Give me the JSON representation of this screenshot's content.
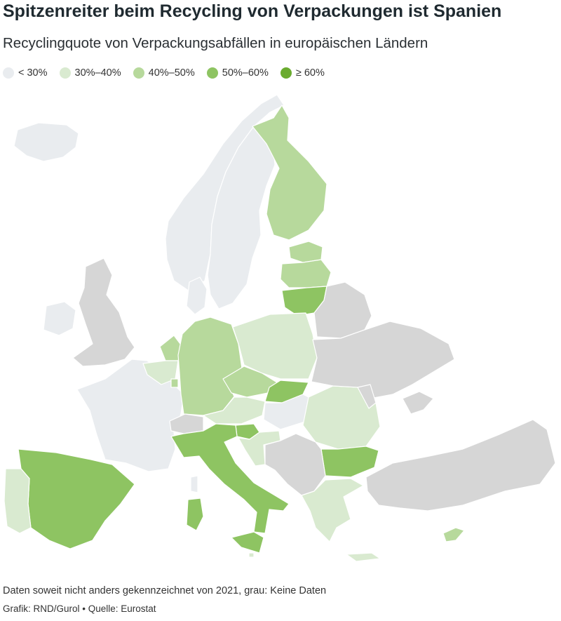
{
  "title": "Spitzenreiter beim Recycling von Verpackungen ist Spanien",
  "subtitle": "Recyclingquote von Verpackungsabfällen in europäischen Ländern",
  "legend": [
    {
      "label": "< 30%",
      "color": "#e9ecef"
    },
    {
      "label": "30%–40%",
      "color": "#d9ead0"
    },
    {
      "label": "40%–50%",
      "color": "#b7d99c"
    },
    {
      "label": "50%–60%",
      "color": "#8ec462"
    },
    {
      "label": "≥ 60%",
      "color": "#6aab2f"
    }
  ],
  "colors": {
    "below30": "#e9ecef",
    "c30_40": "#d9ead0",
    "c40_50": "#b7d99c",
    "c50_60": "#8ec462",
    "ge60": "#6aab2f",
    "nodata": "#d6d6d6"
  },
  "countries": [
    {
      "name": "Island",
      "class": "below30"
    },
    {
      "name": "Norwegen",
      "class": "below30"
    },
    {
      "name": "Schweden",
      "class": "below30"
    },
    {
      "name": "Finnland",
      "class": "c40_50"
    },
    {
      "name": "Estland",
      "class": "c40_50"
    },
    {
      "name": "Lettland",
      "class": "c40_50"
    },
    {
      "name": "Litauen",
      "class": "c50_60"
    },
    {
      "name": "Dänemark",
      "class": "below30"
    },
    {
      "name": "Irland",
      "class": "below30"
    },
    {
      "name": "Vereinigtes Königreich",
      "class": "nodata"
    },
    {
      "name": "Niederlande",
      "class": "c40_50"
    },
    {
      "name": "Belgien",
      "class": "c30_40"
    },
    {
      "name": "Luxemburg",
      "class": "c40_50"
    },
    {
      "name": "Deutschland",
      "class": "c40_50"
    },
    {
      "name": "Polen",
      "class": "c30_40"
    },
    {
      "name": "Tschechien",
      "class": "c40_50"
    },
    {
      "name": "Slowakei",
      "class": "c50_60"
    },
    {
      "name": "Österreich",
      "class": "c30_40"
    },
    {
      "name": "Ungarn",
      "class": "below30"
    },
    {
      "name": "Slowenien",
      "class": "c50_60"
    },
    {
      "name": "Kroatien",
      "class": "c30_40"
    },
    {
      "name": "Frankreich",
      "class": "below30"
    },
    {
      "name": "Schweiz",
      "class": "nodata"
    },
    {
      "name": "Italien",
      "class": "c50_60"
    },
    {
      "name": "Spanien",
      "class": "c50_60"
    },
    {
      "name": "Portugal",
      "class": "c30_40"
    },
    {
      "name": "Rumänien",
      "class": "c30_40"
    },
    {
      "name": "Bulgarien",
      "class": "c50_60"
    },
    {
      "name": "Griechenland",
      "class": "c30_40"
    },
    {
      "name": "Zypern",
      "class": "c40_50"
    },
    {
      "name": "Malta",
      "class": "c30_40"
    },
    {
      "name": "Belarus",
      "class": "nodata"
    },
    {
      "name": "Ukraine",
      "class": "nodata"
    },
    {
      "name": "Moldau",
      "class": "nodata"
    },
    {
      "name": "Westbalkan",
      "class": "nodata"
    },
    {
      "name": "Türkei",
      "class": "nodata"
    }
  ],
  "footer": {
    "note": "Daten soweit nicht anders gekennzeichnet von 2021, grau: Keine Daten",
    "credits": "Grafik: RND/Gurol • Quelle: Eurostat"
  }
}
